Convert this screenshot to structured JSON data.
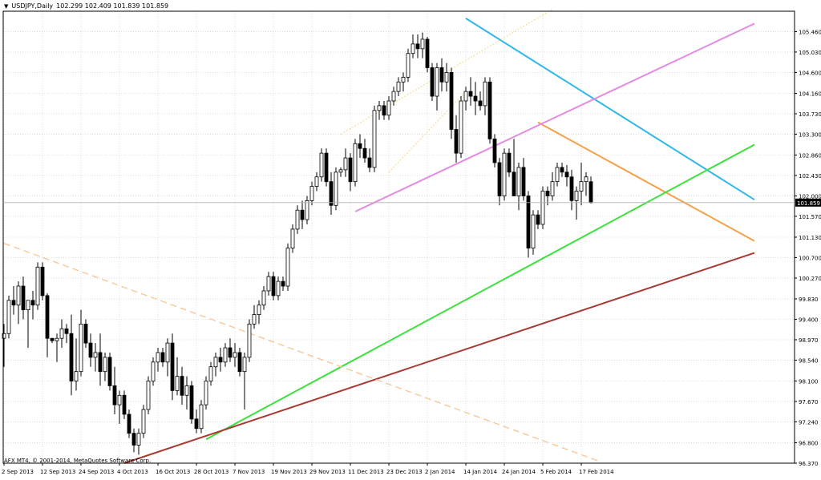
{
  "header": {
    "symbol_timeframe": "USDJPY,Daily",
    "ohlc": "102.299 102.409 101.839 101.859"
  },
  "footer": {
    "copyright": "AFX MT4, © 2001-2014, MetaQuotes Software Corp."
  },
  "colors": {
    "background": "#ffffff",
    "grid": "#c8c8c8",
    "candle_up_fill": "#ffffff",
    "candle_down_fill": "#000000",
    "candle_outline": "#000000",
    "blue_trendline": "#2fb7ea",
    "orange_trendline": "#f6a04a",
    "green_trendline": "#3ee03e",
    "brown_trendline": "#a83a32",
    "violet_channel": "#e48ae2",
    "yellow_channel": "#f7e2a0",
    "dashed_trendline": "#f7c79a",
    "current_price_tag": "#000000"
  },
  "chart_data": {
    "type": "candlestick",
    "symbol": "USDJPY",
    "timeframe": "Daily",
    "grid": true,
    "y_ticks": [
      "105.460",
      "105.030",
      "104.600",
      "104.160",
      "103.730",
      "103.300",
      "102.860",
      "102.430",
      "102.000",
      "101.570",
      "101.130",
      "100.700",
      "100.270",
      "99.830",
      "99.400",
      "98.970",
      "98.540",
      "98.100",
      "97.670",
      "97.240",
      "96.800",
      "96.370"
    ],
    "current_price": "101.859",
    "ylim": [
      96.37,
      105.89
    ],
    "x_ticks": [
      "2 Sep 2013",
      "12 Sep 2013",
      "24 Sep 2013",
      "4 Oct 2013",
      "16 Oct 2013",
      "28 Oct 2013",
      "7 Nov 2013",
      "19 Nov 2013",
      "29 Nov 2013",
      "11 Dec 2013",
      "23 Dec 2013",
      "2 Jan 2014",
      "14 Jan 2014",
      "24 Jan 2014",
      "5 Feb 2014",
      "17 Feb 2014"
    ],
    "candles": [
      {
        "o": 99.0,
        "h": 99.3,
        "l": 98.4,
        "c": 99.1
      },
      {
        "o": 99.1,
        "h": 99.9,
        "l": 99.0,
        "c": 99.8
      },
      {
        "o": 99.8,
        "h": 100.1,
        "l": 99.5,
        "c": 99.7
      },
      {
        "o": 99.7,
        "h": 100.2,
        "l": 99.3,
        "c": 100.1
      },
      {
        "o": 100.1,
        "h": 100.3,
        "l": 99.4,
        "c": 99.6
      },
      {
        "o": 99.6,
        "h": 99.8,
        "l": 98.8,
        "c": 99.8
      },
      {
        "o": 99.8,
        "h": 100.0,
        "l": 99.4,
        "c": 99.7
      },
      {
        "o": 99.7,
        "h": 100.6,
        "l": 99.6,
        "c": 100.5
      },
      {
        "o": 100.5,
        "h": 100.6,
        "l": 99.8,
        "c": 99.9
      },
      {
        "o": 99.9,
        "h": 99.95,
        "l": 98.6,
        "c": 99.0
      },
      {
        "o": 99.0,
        "h": 99.0,
        "l": 98.9,
        "c": 98.95
      },
      {
        "o": 98.95,
        "h": 99.1,
        "l": 98.5,
        "c": 99.0
      },
      {
        "o": 99.0,
        "h": 99.4,
        "l": 98.8,
        "c": 99.2
      },
      {
        "o": 99.2,
        "h": 99.3,
        "l": 98.9,
        "c": 99.1
      },
      {
        "o": 99.1,
        "h": 99.5,
        "l": 97.8,
        "c": 98.1
      },
      {
        "o": 98.1,
        "h": 99.0,
        "l": 97.9,
        "c": 98.3
      },
      {
        "o": 98.3,
        "h": 99.6,
        "l": 98.2,
        "c": 99.3
      },
      {
        "o": 99.3,
        "h": 99.4,
        "l": 98.8,
        "c": 98.9
      },
      {
        "o": 98.9,
        "h": 99.1,
        "l": 98.4,
        "c": 98.6
      },
      {
        "o": 98.6,
        "h": 98.9,
        "l": 98.3,
        "c": 98.7
      },
      {
        "o": 98.7,
        "h": 99.1,
        "l": 98.0,
        "c": 98.3
      },
      {
        "o": 98.3,
        "h": 98.7,
        "l": 98.1,
        "c": 98.6
      },
      {
        "o": 98.6,
        "h": 98.7,
        "l": 97.9,
        "c": 98.0
      },
      {
        "o": 98.0,
        "h": 98.4,
        "l": 97.4,
        "c": 97.6
      },
      {
        "o": 97.6,
        "h": 97.9,
        "l": 97.2,
        "c": 97.8
      },
      {
        "o": 97.8,
        "h": 97.9,
        "l": 97.3,
        "c": 97.4
      },
      {
        "o": 97.4,
        "h": 97.5,
        "l": 96.9,
        "c": 97.0
      },
      {
        "o": 97.0,
        "h": 97.1,
        "l": 96.6,
        "c": 96.75
      },
      {
        "o": 96.75,
        "h": 97.1,
        "l": 96.55,
        "c": 97.0
      },
      {
        "o": 97.0,
        "h": 97.6,
        "l": 96.9,
        "c": 97.5
      },
      {
        "o": 97.5,
        "h": 98.2,
        "l": 97.4,
        "c": 98.1
      },
      {
        "o": 98.1,
        "h": 98.6,
        "l": 98.0,
        "c": 98.5
      },
      {
        "o": 98.5,
        "h": 98.8,
        "l": 98.3,
        "c": 98.7
      },
      {
        "o": 98.7,
        "h": 98.8,
        "l": 98.4,
        "c": 98.5
      },
      {
        "o": 98.5,
        "h": 99.0,
        "l": 98.2,
        "c": 98.9
      },
      {
        "o": 98.9,
        "h": 99.1,
        "l": 97.7,
        "c": 97.9
      },
      {
        "o": 97.9,
        "h": 98.6,
        "l": 97.8,
        "c": 98.2
      },
      {
        "o": 98.2,
        "h": 98.4,
        "l": 97.6,
        "c": 97.8
      },
      {
        "o": 97.8,
        "h": 98.2,
        "l": 97.5,
        "c": 98.0
      },
      {
        "o": 98.0,
        "h": 98.1,
        "l": 97.2,
        "c": 97.3
      },
      {
        "o": 97.3,
        "h": 97.5,
        "l": 97.0,
        "c": 97.1
      },
      {
        "o": 97.1,
        "h": 97.7,
        "l": 97.0,
        "c": 97.6
      },
      {
        "o": 97.6,
        "h": 98.2,
        "l": 97.5,
        "c": 98.1
      },
      {
        "o": 98.1,
        "h": 98.5,
        "l": 98.0,
        "c": 98.4
      },
      {
        "o": 98.4,
        "h": 98.7,
        "l": 98.2,
        "c": 98.6
      },
      {
        "o": 98.6,
        "h": 98.8,
        "l": 98.3,
        "c": 98.5
      },
      {
        "o": 98.5,
        "h": 98.9,
        "l": 98.4,
        "c": 98.8
      },
      {
        "o": 98.8,
        "h": 99.0,
        "l": 98.5,
        "c": 98.6
      },
      {
        "o": 98.6,
        "h": 98.9,
        "l": 98.4,
        "c": 98.7
      },
      {
        "o": 98.7,
        "h": 98.8,
        "l": 98.2,
        "c": 98.3
      },
      {
        "o": 98.3,
        "h": 98.7,
        "l": 97.5,
        "c": 98.6
      },
      {
        "o": 98.6,
        "h": 99.4,
        "l": 98.5,
        "c": 99.3
      },
      {
        "o": 99.3,
        "h": 99.7,
        "l": 99.2,
        "c": 99.5
      },
      {
        "o": 99.5,
        "h": 99.8,
        "l": 99.3,
        "c": 99.7
      },
      {
        "o": 99.7,
        "h": 100.1,
        "l": 99.6,
        "c": 100.0
      },
      {
        "o": 100.0,
        "h": 100.4,
        "l": 99.9,
        "c": 100.3
      },
      {
        "o": 100.3,
        "h": 100.4,
        "l": 99.8,
        "c": 99.9
      },
      {
        "o": 99.9,
        "h": 100.3,
        "l": 99.8,
        "c": 100.2
      },
      {
        "o": 100.2,
        "h": 100.3,
        "l": 100.0,
        "c": 100.1
      },
      {
        "o": 100.1,
        "h": 101.0,
        "l": 100.0,
        "c": 100.9
      },
      {
        "o": 100.9,
        "h": 101.4,
        "l": 100.8,
        "c": 101.3
      },
      {
        "o": 101.3,
        "h": 101.8,
        "l": 101.2,
        "c": 101.7
      },
      {
        "o": 101.7,
        "h": 101.9,
        "l": 101.3,
        "c": 101.5
      },
      {
        "o": 101.5,
        "h": 102.0,
        "l": 101.4,
        "c": 101.9
      },
      {
        "o": 101.9,
        "h": 102.3,
        "l": 101.8,
        "c": 102.2
      },
      {
        "o": 102.2,
        "h": 102.5,
        "l": 102.1,
        "c": 102.4
      },
      {
        "o": 102.4,
        "h": 103.0,
        "l": 102.3,
        "c": 102.9
      },
      {
        "o": 102.9,
        "h": 103.0,
        "l": 102.2,
        "c": 102.3
      },
      {
        "o": 102.3,
        "h": 102.5,
        "l": 101.6,
        "c": 101.8
      },
      {
        "o": 101.8,
        "h": 102.6,
        "l": 101.7,
        "c": 102.5
      },
      {
        "o": 102.5,
        "h": 102.6,
        "l": 102.4,
        "c": 102.55
      },
      {
        "o": 102.55,
        "h": 103.0,
        "l": 102.4,
        "c": 102.8
      },
      {
        "o": 102.8,
        "h": 102.9,
        "l": 102.1,
        "c": 102.3
      },
      {
        "o": 102.3,
        "h": 103.2,
        "l": 102.2,
        "c": 103.1
      },
      {
        "o": 103.1,
        "h": 103.3,
        "l": 102.8,
        "c": 103.0
      },
      {
        "o": 103.0,
        "h": 103.2,
        "l": 102.7,
        "c": 102.8
      },
      {
        "o": 102.8,
        "h": 103.0,
        "l": 102.5,
        "c": 102.6
      },
      {
        "o": 102.6,
        "h": 103.9,
        "l": 102.5,
        "c": 103.8
      },
      {
        "o": 103.8,
        "h": 104.0,
        "l": 103.6,
        "c": 103.9
      },
      {
        "o": 103.9,
        "h": 104.0,
        "l": 103.6,
        "c": 103.7
      },
      {
        "o": 103.7,
        "h": 104.1,
        "l": 103.6,
        "c": 104.0
      },
      {
        "o": 104.0,
        "h": 104.3,
        "l": 103.9,
        "c": 104.2
      },
      {
        "o": 104.2,
        "h": 104.5,
        "l": 104.1,
        "c": 104.4
      },
      {
        "o": 104.4,
        "h": 104.6,
        "l": 104.2,
        "c": 104.5
      },
      {
        "o": 104.5,
        "h": 105.1,
        "l": 104.4,
        "c": 105.0
      },
      {
        "o": 105.0,
        "h": 105.4,
        "l": 104.9,
        "c": 105.2
      },
      {
        "o": 105.2,
        "h": 105.4,
        "l": 104.9,
        "c": 105.1
      },
      {
        "o": 105.1,
        "h": 105.44,
        "l": 104.9,
        "c": 105.3
      },
      {
        "o": 105.3,
        "h": 105.35,
        "l": 104.6,
        "c": 104.7
      },
      {
        "o": 104.7,
        "h": 104.8,
        "l": 104.0,
        "c": 104.1
      },
      {
        "o": 104.1,
        "h": 104.8,
        "l": 103.8,
        "c": 104.7
      },
      {
        "o": 104.7,
        "h": 104.9,
        "l": 104.2,
        "c": 104.4
      },
      {
        "o": 104.4,
        "h": 104.8,
        "l": 104.2,
        "c": 104.6
      },
      {
        "o": 104.6,
        "h": 104.7,
        "l": 103.2,
        "c": 103.4
      },
      {
        "o": 103.4,
        "h": 103.7,
        "l": 102.7,
        "c": 102.9
      },
      {
        "o": 102.9,
        "h": 104.1,
        "l": 102.8,
        "c": 104.0
      },
      {
        "o": 104.0,
        "h": 104.3,
        "l": 103.8,
        "c": 104.2
      },
      {
        "o": 104.2,
        "h": 104.5,
        "l": 103.9,
        "c": 104.1
      },
      {
        "o": 104.1,
        "h": 104.4,
        "l": 103.7,
        "c": 104.0
      },
      {
        "o": 104.0,
        "h": 104.2,
        "l": 103.8,
        "c": 103.9
      },
      {
        "o": 103.9,
        "h": 104.5,
        "l": 103.7,
        "c": 104.4
      },
      {
        "o": 104.4,
        "h": 104.5,
        "l": 103.1,
        "c": 103.2
      },
      {
        "o": 103.2,
        "h": 103.3,
        "l": 102.6,
        "c": 102.7
      },
      {
        "o": 102.7,
        "h": 102.8,
        "l": 101.8,
        "c": 102.0
      },
      {
        "o": 102.0,
        "h": 103.0,
        "l": 101.9,
        "c": 102.9
      },
      {
        "o": 102.9,
        "h": 103.0,
        "l": 102.4,
        "c": 102.5
      },
      {
        "o": 102.5,
        "h": 103.2,
        "l": 102.0,
        "c": 102.0
      },
      {
        "o": 102.0,
        "h": 102.7,
        "l": 101.7,
        "c": 102.6
      },
      {
        "o": 102.6,
        "h": 102.8,
        "l": 101.9,
        "c": 102.0
      },
      {
        "o": 102.0,
        "h": 102.1,
        "l": 100.7,
        "c": 100.9
      },
      {
        "o": 100.9,
        "h": 101.7,
        "l": 100.76,
        "c": 101.6
      },
      {
        "o": 101.6,
        "h": 101.7,
        "l": 101.3,
        "c": 101.4
      },
      {
        "o": 101.4,
        "h": 102.2,
        "l": 101.3,
        "c": 102.1
      },
      {
        "o": 102.1,
        "h": 102.2,
        "l": 101.8,
        "c": 102.0
      },
      {
        "o": 102.0,
        "h": 102.5,
        "l": 101.9,
        "c": 102.3
      },
      {
        "o": 102.3,
        "h": 102.7,
        "l": 102.2,
        "c": 102.6
      },
      {
        "o": 102.6,
        "h": 102.7,
        "l": 102.4,
        "c": 102.5
      },
      {
        "o": 102.5,
        "h": 102.65,
        "l": 102.2,
        "c": 102.4
      },
      {
        "o": 102.4,
        "h": 102.55,
        "l": 101.7,
        "c": 101.9
      },
      {
        "o": 101.9,
        "h": 102.2,
        "l": 101.5,
        "c": 102.1
      },
      {
        "o": 102.1,
        "h": 102.7,
        "l": 101.8,
        "c": 102.3
      },
      {
        "o": 102.3,
        "h": 102.5,
        "l": 102.0,
        "c": 102.4
      },
      {
        "o": 102.299,
        "h": 102.409,
        "l": 101.839,
        "c": 101.859
      }
    ],
    "drawings": [
      {
        "name": "blue-trendline",
        "style": "solid",
        "color": "#2fb7ea",
        "from": {
          "bar": 96,
          "price": 105.74
        },
        "to": {
          "bar": 156,
          "price": 101.92
        }
      },
      {
        "name": "orange-trendline",
        "style": "solid",
        "color": "#f6a04a",
        "from": {
          "bar": 111,
          "price": 103.55
        },
        "to": {
          "bar": 156,
          "price": 101.05
        }
      },
      {
        "name": "green-trendline",
        "style": "solid",
        "color": "#3ee03e",
        "from": {
          "bar": 42,
          "price": 96.87
        },
        "to": {
          "bar": 156,
          "price": 103.08
        }
      },
      {
        "name": "brown-trendline",
        "style": "solid",
        "color": "#a83a32",
        "from": {
          "bar": 25,
          "price": 96.37
        },
        "to": {
          "bar": 156,
          "price": 100.8
        }
      },
      {
        "name": "violet-channel",
        "style": "solid",
        "color": "#e48ae2",
        "from": {
          "bar": 73,
          "price": 101.67
        },
        "to": {
          "bar": 156,
          "price": 105.63
        }
      },
      {
        "name": "yellow-channel-upper",
        "style": "dotted",
        "color": "#f7e2a0",
        "from": {
          "bar": 70,
          "price": 103.3
        },
        "to": {
          "bar": 114,
          "price": 105.93
        }
      },
      {
        "name": "yellow-channel-lower",
        "style": "dotted",
        "color": "#f7e2a0",
        "from": {
          "bar": 80,
          "price": 102.5
        },
        "to": {
          "bar": 96,
          "price": 104.2
        }
      },
      {
        "name": "dashed-trendline",
        "style": "dashed",
        "color": "#f7c79a",
        "from": {
          "bar": 0,
          "price": 101.0
        },
        "to": {
          "bar": 124,
          "price": 96.4
        }
      }
    ]
  }
}
